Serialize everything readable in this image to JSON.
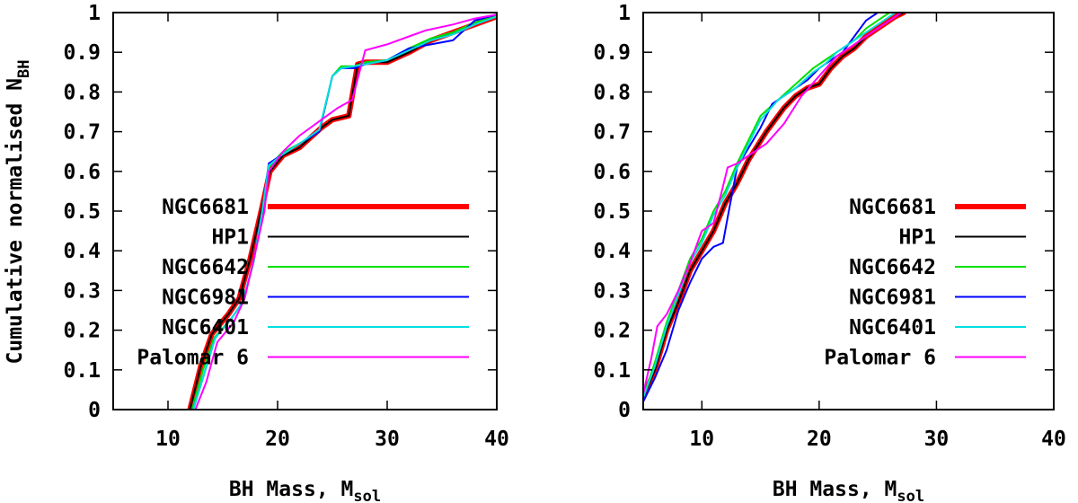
{
  "figure": {
    "ylabel_main": "Cumulative normalised N",
    "ylabel_sub": "BH"
  },
  "chart_data": [
    {
      "type": "line",
      "xlabel_main": "BH Mass, M",
      "xlabel_sub": "sol",
      "xlim": [
        5,
        40
      ],
      "ylim": [
        0,
        1
      ],
      "xticks": [
        10,
        20,
        30,
        40
      ],
      "yticks": [
        0,
        0.1,
        0.2,
        0.3,
        0.4,
        0.5,
        0.6,
        0.7,
        0.8,
        0.9,
        1
      ],
      "legend_position": "bottom-right",
      "series": [
        {
          "name": "NGC6681",
          "color": "#ff0000",
          "width": 6,
          "x": [
            12.0,
            13.0,
            14.0,
            15.5,
            16.5,
            17.5,
            18.5,
            19.3,
            20.5,
            22.0,
            24.0,
            25.0,
            26.5,
            27.3,
            28.0,
            30.0,
            32.0,
            34.0,
            36.0,
            38.0,
            40.0
          ],
          "y": [
            0.0,
            0.11,
            0.19,
            0.24,
            0.28,
            0.38,
            0.5,
            0.6,
            0.64,
            0.66,
            0.71,
            0.73,
            0.74,
            0.87,
            0.875,
            0.875,
            0.9,
            0.93,
            0.95,
            0.97,
            0.99
          ]
        },
        {
          "name": "HP1",
          "color": "#000000",
          "width": 2,
          "x": [
            12.0,
            13.0,
            14.0,
            15.5,
            16.5,
            17.5,
            18.5,
            19.3,
            20.5,
            22.0,
            24.0,
            25.0,
            26.5,
            27.3,
            28.0,
            30.0,
            32.0,
            34.0,
            36.0,
            38.0,
            40.0
          ],
          "y": [
            0.0,
            0.11,
            0.19,
            0.24,
            0.28,
            0.38,
            0.5,
            0.6,
            0.64,
            0.66,
            0.71,
            0.73,
            0.74,
            0.87,
            0.875,
            0.875,
            0.9,
            0.93,
            0.95,
            0.97,
            0.99
          ]
        },
        {
          "name": "NGC6642",
          "color": "#00e000",
          "width": 2,
          "x": [
            12.2,
            13.2,
            14.2,
            15.8,
            16.8,
            17.8,
            18.6,
            19.2,
            20.3,
            22.0,
            23.8,
            25.0,
            25.8,
            27.0,
            28.0,
            30.0,
            32.0,
            34.0,
            36.0,
            38.0,
            40.0
          ],
          "y": [
            0.0,
            0.1,
            0.18,
            0.23,
            0.27,
            0.37,
            0.5,
            0.61,
            0.645,
            0.67,
            0.7,
            0.84,
            0.865,
            0.865,
            0.875,
            0.88,
            0.91,
            0.935,
            0.95,
            0.975,
            0.99
          ]
        },
        {
          "name": "NGC6981",
          "color": "#0000ff",
          "width": 2,
          "x": [
            12.3,
            13.3,
            14.3,
            15.8,
            16.8,
            17.8,
            18.6,
            19.2,
            20.3,
            22.0,
            23.8,
            25.0,
            25.8,
            27.0,
            28.0,
            30.0,
            32.0,
            34.0,
            36.0,
            38.0,
            40.0
          ],
          "y": [
            0.0,
            0.09,
            0.18,
            0.23,
            0.27,
            0.37,
            0.5,
            0.62,
            0.64,
            0.67,
            0.7,
            0.84,
            0.86,
            0.86,
            0.87,
            0.88,
            0.91,
            0.92,
            0.93,
            0.98,
            0.995
          ]
        },
        {
          "name": "NGC6401",
          "color": "#00e0e0",
          "width": 2,
          "x": [
            12.3,
            13.3,
            14.3,
            15.8,
            16.8,
            17.8,
            18.6,
            19.2,
            20.3,
            22.0,
            23.8,
            25.0,
            25.8,
            27.0,
            28.0,
            30.0,
            32.0,
            34.0,
            36.0,
            38.0,
            40.0
          ],
          "y": [
            0.0,
            0.09,
            0.18,
            0.23,
            0.27,
            0.37,
            0.5,
            0.615,
            0.64,
            0.67,
            0.705,
            0.84,
            0.86,
            0.865,
            0.87,
            0.88,
            0.905,
            0.93,
            0.945,
            0.97,
            0.99
          ]
        },
        {
          "name": "Palomar 6",
          "color": "#ff00ff",
          "width": 2,
          "x": [
            12.5,
            13.5,
            14.5,
            16.0,
            17.0,
            18.0,
            18.8,
            19.2,
            20.5,
            22.0,
            24.0,
            25.5,
            26.8,
            28.0,
            30.0,
            32.0,
            33.5,
            36.0,
            38.0,
            40.0
          ],
          "y": [
            0.0,
            0.07,
            0.17,
            0.22,
            0.28,
            0.4,
            0.5,
            0.6,
            0.65,
            0.69,
            0.73,
            0.76,
            0.78,
            0.905,
            0.92,
            0.94,
            0.955,
            0.97,
            0.985,
            0.995
          ]
        }
      ]
    },
    {
      "type": "line",
      "xlabel_main": "BH Mass, M",
      "xlabel_sub": "sol",
      "xlim": [
        5,
        40
      ],
      "ylim": [
        0,
        1
      ],
      "xticks": [
        10,
        20,
        30,
        40
      ],
      "yticks": [
        0,
        0.1,
        0.2,
        0.3,
        0.4,
        0.5,
        0.6,
        0.7,
        0.8,
        0.9,
        1
      ],
      "legend_position": "bottom-right",
      "series": [
        {
          "name": "NGC6681",
          "color": "#ff0000",
          "width": 6,
          "x": [
            5.0,
            6.0,
            7.0,
            8.0,
            9.0,
            10.0,
            11.0,
            12.0,
            13.0,
            14.0,
            15.5,
            17.0,
            18.0,
            19.0,
            20.0,
            21.0,
            22.0,
            23.0,
            24.0,
            25.0,
            26.5,
            27.2
          ],
          "y": [
            0.03,
            0.1,
            0.2,
            0.27,
            0.35,
            0.4,
            0.45,
            0.52,
            0.57,
            0.63,
            0.7,
            0.76,
            0.79,
            0.81,
            0.82,
            0.86,
            0.89,
            0.91,
            0.94,
            0.96,
            0.99,
            1.0
          ]
        },
        {
          "name": "HP1",
          "color": "#000000",
          "width": 2,
          "x": [
            5.0,
            6.0,
            7.0,
            8.0,
            9.0,
            10.0,
            11.0,
            12.0,
            13.0,
            14.0,
            15.5,
            17.0,
            18.0,
            19.0,
            20.0,
            21.0,
            22.0,
            23.0,
            24.0,
            25.0,
            26.5,
            27.2
          ],
          "y": [
            0.03,
            0.1,
            0.2,
            0.27,
            0.35,
            0.4,
            0.45,
            0.52,
            0.57,
            0.63,
            0.7,
            0.76,
            0.79,
            0.81,
            0.82,
            0.86,
            0.89,
            0.91,
            0.94,
            0.96,
            0.99,
            1.0
          ]
        },
        {
          "name": "NGC6642",
          "color": "#00e000",
          "width": 2,
          "x": [
            5.0,
            6.0,
            7.0,
            8.0,
            9.0,
            10.0,
            11.0,
            12.0,
            13.0,
            14.0,
            15.0,
            16.5,
            18.0,
            19.5,
            20.5,
            21.5,
            23.0,
            24.0,
            25.0,
            26.0
          ],
          "y": [
            0.03,
            0.12,
            0.22,
            0.3,
            0.38,
            0.43,
            0.5,
            0.55,
            0.62,
            0.68,
            0.74,
            0.78,
            0.82,
            0.86,
            0.88,
            0.9,
            0.93,
            0.96,
            0.98,
            1.0
          ]
        },
        {
          "name": "NGC6981",
          "color": "#0000ff",
          "width": 2,
          "x": [
            5.0,
            6.0,
            7.0,
            8.0,
            9.0,
            10.0,
            11.0,
            11.8,
            12.3,
            13.0,
            14.0,
            15.0,
            16.0,
            17.5,
            19.0,
            20.0,
            21.0,
            22.0,
            23.0,
            24.0,
            25.0
          ],
          "y": [
            0.02,
            0.08,
            0.15,
            0.25,
            0.32,
            0.38,
            0.41,
            0.42,
            0.5,
            0.61,
            0.66,
            0.71,
            0.77,
            0.8,
            0.83,
            0.86,
            0.88,
            0.9,
            0.94,
            0.98,
            1.0
          ]
        },
        {
          "name": "NGC6401",
          "color": "#00e0e0",
          "width": 2,
          "x": [
            5.0,
            6.0,
            7.0,
            8.0,
            9.0,
            10.0,
            11.0,
            12.0,
            13.0,
            14.0,
            15.0,
            16.5,
            18.0,
            19.5,
            20.5,
            21.5,
            23.0,
            24.0,
            25.5,
            26.5
          ],
          "y": [
            0.03,
            0.11,
            0.21,
            0.29,
            0.37,
            0.42,
            0.49,
            0.54,
            0.61,
            0.67,
            0.73,
            0.78,
            0.81,
            0.85,
            0.87,
            0.9,
            0.93,
            0.95,
            0.98,
            1.0
          ]
        },
        {
          "name": "Palomar 6",
          "color": "#ff00ff",
          "width": 2,
          "x": [
            5.0,
            5.7,
            6.2,
            7.0,
            8.0,
            9.0,
            10.0,
            11.0,
            11.7,
            12.2,
            13.0,
            14.0,
            15.5,
            17.0,
            18.5,
            20.0,
            21.5,
            23.0,
            24.5,
            26.0,
            27.0
          ],
          "y": [
            0.04,
            0.13,
            0.21,
            0.24,
            0.3,
            0.37,
            0.45,
            0.47,
            0.55,
            0.61,
            0.62,
            0.64,
            0.67,
            0.72,
            0.79,
            0.84,
            0.89,
            0.92,
            0.95,
            0.98,
            1.0
          ]
        }
      ]
    }
  ]
}
